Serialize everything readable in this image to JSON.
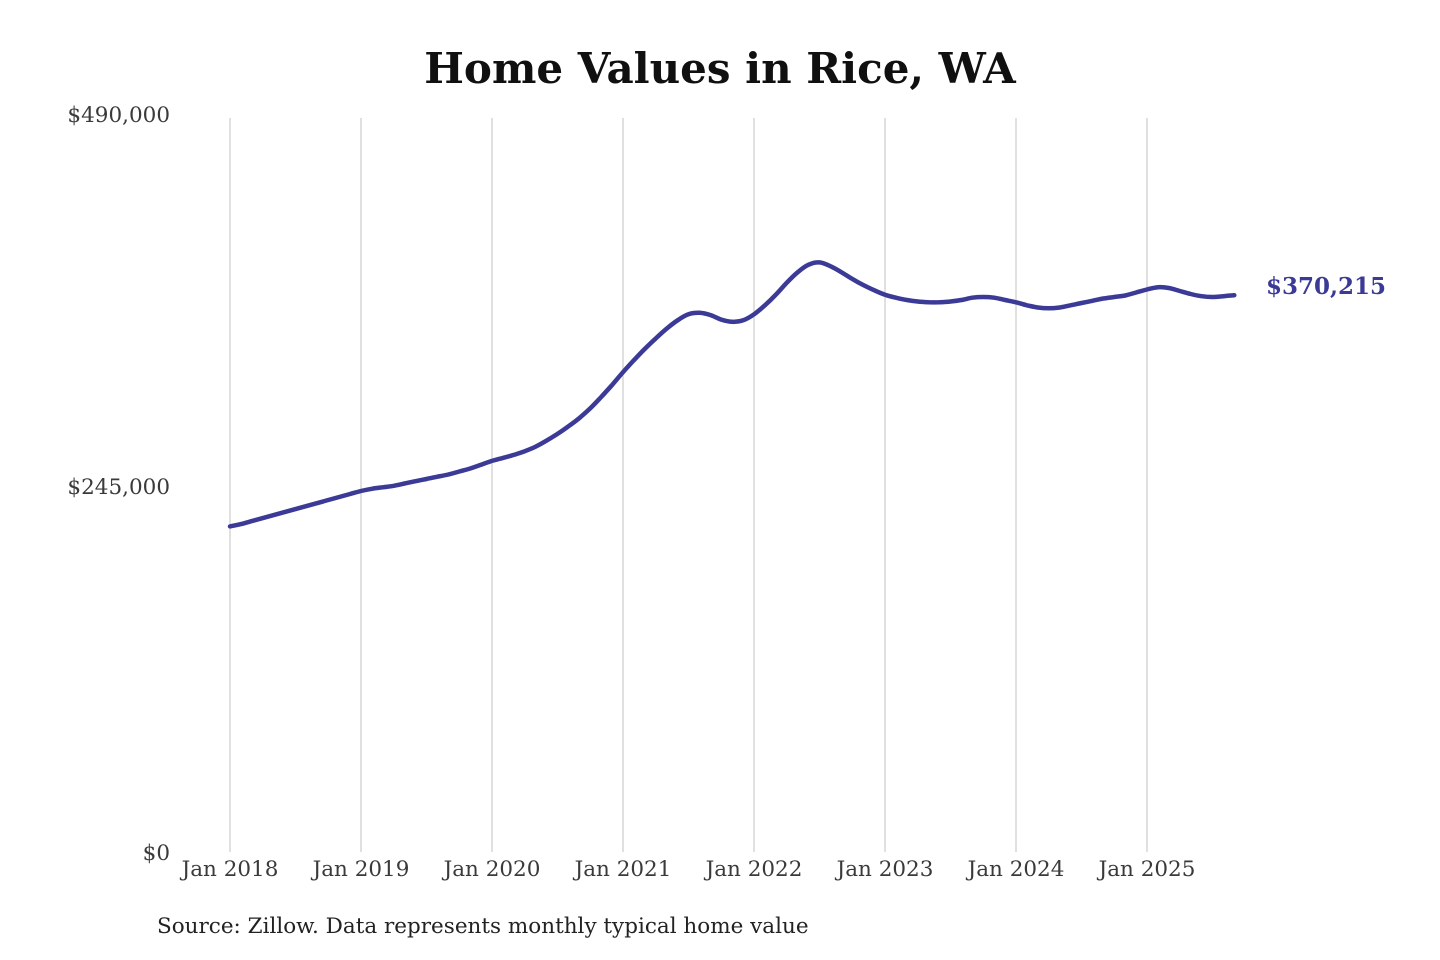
{
  "chart_data": {
    "type": "line",
    "title": "Home Values in Rice, WA",
    "source_note": "Source: Zillow. Data represents monthly typical home value",
    "frequency": "monthly",
    "start": "Jan 2018",
    "end": "Sep 2025",
    "end_label": "$370,215",
    "final_value": 370215,
    "xlabel": "",
    "ylabel": "",
    "ylim": [
      0,
      490000
    ],
    "grid": "vertical-year-gridlines",
    "legend": "none",
    "line_color": "#3b3a97",
    "grid_color": "#cccccc",
    "x_ticks": [
      "Jan 2018",
      "Jan 2019",
      "Jan 2020",
      "Jan 2021",
      "Jan 2022",
      "Jan 2023",
      "Jan 2024",
      "Jan 2025"
    ],
    "y_ticks": [
      {
        "label": "$0",
        "value": 0
      },
      {
        "label": "$245,000",
        "value": 245000
      },
      {
        "label": "$490,000",
        "value": 490000
      }
    ],
    "values": [
      216500,
      218000,
      220000,
      222000,
      224000,
      226000,
      228000,
      230000,
      232000,
      234000,
      236000,
      238000,
      240000,
      241500,
      242500,
      243500,
      245000,
      246500,
      248000,
      249500,
      251000,
      253000,
      255000,
      257500,
      260000,
      262000,
      264000,
      266500,
      269500,
      273500,
      278000,
      283000,
      288500,
      295000,
      302500,
      310500,
      319000,
      327000,
      334500,
      341500,
      348000,
      353500,
      357500,
      358500,
      357000,
      354000,
      352500,
      353500,
      357500,
      363500,
      370500,
      378500,
      385500,
      390500,
      392000,
      389500,
      385500,
      381000,
      377000,
      373500,
      370500,
      368500,
      367000,
      366000,
      365500,
      365500,
      366000,
      367000,
      368500,
      369000,
      368500,
      367000,
      365500,
      363500,
      362000,
      361500,
      362000,
      363500,
      365000,
      366500,
      368000,
      369000,
      370000,
      372000,
      374000,
      375500,
      375000,
      373000,
      371000,
      369500,
      369000,
      369500,
      370215
    ]
  }
}
